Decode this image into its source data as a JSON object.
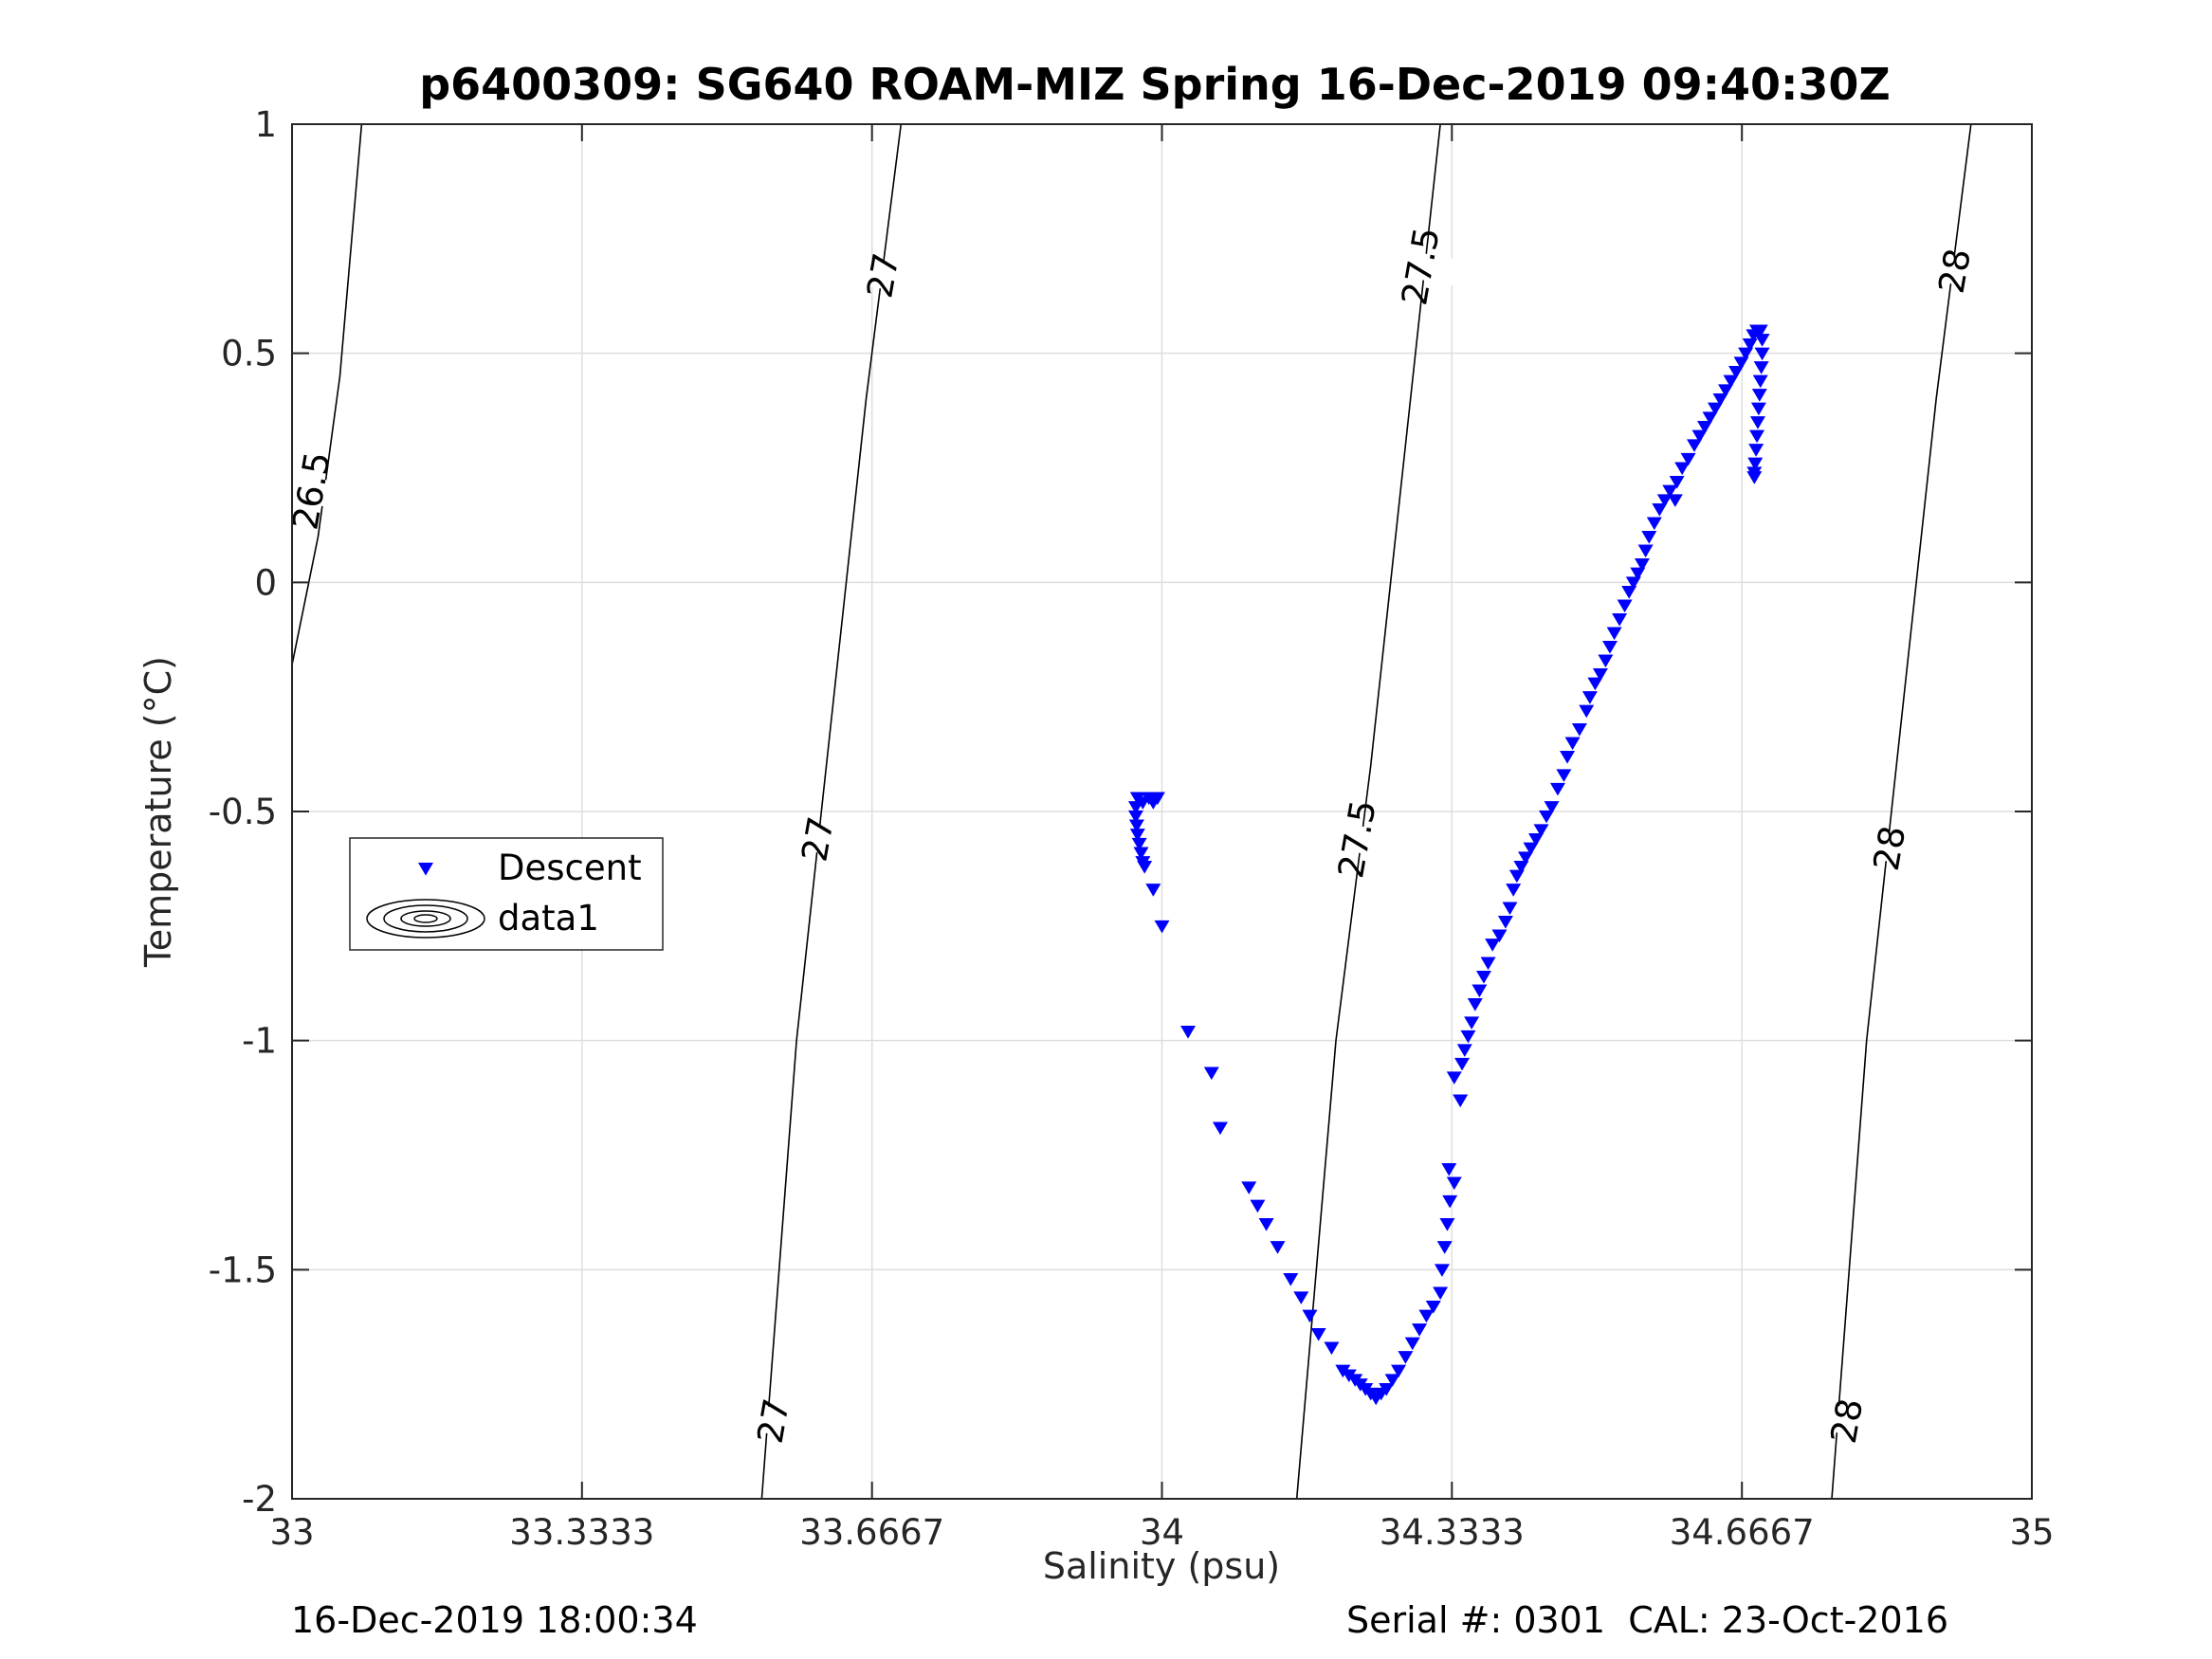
{
  "chart_data": {
    "type": "scatter",
    "title": "p6400309: SG640 ROAM-MIZ Spring 16-Dec-2019 09:40:30Z",
    "xlabel": "Salinity (psu)",
    "ylabel": "Temperature (°C)",
    "xlim": [
      33,
      35
    ],
    "ylim": [
      -2,
      1
    ],
    "x_ticks": [
      33,
      33.3333,
      33.6667,
      34,
      34.3333,
      34.6667,
      35
    ],
    "x_tick_labels": [
      "33",
      "33.3333",
      "33.6667",
      "34",
      "34.3333",
      "34.6667",
      "35"
    ],
    "y_ticks": [
      -2,
      -1.5,
      -1,
      -0.5,
      0,
      0.5,
      1
    ],
    "y_tick_labels": [
      "-2",
      "-1.5",
      "-1",
      "-0.5",
      "0",
      "0.5",
      "1"
    ],
    "grid": true,
    "legend_placement": "middle-left",
    "legend": [
      {
        "label": "Descent",
        "marker": "triangle-down",
        "color": "#0000ff"
      },
      {
        "label": "data1",
        "marker": "contour",
        "color": "#000000"
      }
    ],
    "contours": [
      {
        "level": "26.5",
        "points": [
          [
            33.0,
            -0.18
          ],
          [
            33.03,
            0.1
          ],
          [
            33.055,
            0.45
          ],
          [
            33.08,
            1.0
          ]
        ],
        "labels": [
          {
            "text": "26.5",
            "s": 33.022,
            "t": 0.2
          }
        ]
      },
      {
        "level": "27",
        "points": [
          [
            33.54,
            -2.0
          ],
          [
            33.58,
            -1.0
          ],
          [
            33.62,
            -0.3
          ],
          [
            33.66,
            0.4
          ],
          [
            33.7,
            1.0
          ]
        ],
        "labels": [
          {
            "text": "27",
            "s": 33.553,
            "t": -1.83
          },
          {
            "text": "27",
            "s": 33.604,
            "t": -0.56
          },
          {
            "text": "27",
            "s": 33.679,
            "t": 0.67
          }
        ]
      },
      {
        "level": "27.5",
        "points": [
          [
            34.155,
            -2.0
          ],
          [
            34.2,
            -1.0
          ],
          [
            34.24,
            -0.4
          ],
          [
            34.28,
            0.3
          ],
          [
            34.32,
            1.0
          ]
        ],
        "labels": [
          {
            "text": "27.5",
            "s": 34.224,
            "t": -0.56
          },
          {
            "text": "27.5",
            "s": 34.297,
            "t": 0.69
          }
        ]
      },
      {
        "level": "28",
        "points": [
          [
            34.77,
            -2.0
          ],
          [
            34.81,
            -1.0
          ],
          [
            34.85,
            -0.3
          ],
          [
            34.89,
            0.4
          ],
          [
            34.93,
            1.0
          ]
        ],
        "labels": [
          {
            "text": "28",
            "s": 34.787,
            "t": -1.83
          },
          {
            "text": "28",
            "s": 34.836,
            "t": -0.58
          },
          {
            "text": "28",
            "s": 34.911,
            "t": 0.68
          }
        ]
      }
    ],
    "series": [
      {
        "name": "Descent",
        "marker": "triangle-down",
        "color": "#0000ff",
        "points": [
          [
            33.995,
            -0.47
          ],
          [
            33.99,
            -0.48
          ],
          [
            33.985,
            -0.47
          ],
          [
            33.978,
            -0.48
          ],
          [
            33.972,
            -0.47
          ],
          [
            33.97,
            -0.49
          ],
          [
            33.97,
            -0.51
          ],
          [
            33.971,
            -0.53
          ],
          [
            33.972,
            -0.55
          ],
          [
            33.974,
            -0.57
          ],
          [
            33.976,
            -0.59
          ],
          [
            33.978,
            -0.61
          ],
          [
            33.98,
            -0.62
          ],
          [
            33.99,
            -0.67
          ],
          [
            34.0,
            -0.75
          ],
          [
            34.03,
            -0.98
          ],
          [
            34.057,
            -1.07
          ],
          [
            34.067,
            -1.19
          ],
          [
            34.1,
            -1.32
          ],
          [
            34.11,
            -1.36
          ],
          [
            34.12,
            -1.4
          ],
          [
            34.133,
            -1.45
          ],
          [
            34.148,
            -1.52
          ],
          [
            34.16,
            -1.56
          ],
          [
            34.17,
            -1.6
          ],
          [
            34.18,
            -1.64
          ],
          [
            34.195,
            -1.67
          ],
          [
            34.208,
            -1.72
          ],
          [
            34.215,
            -1.73
          ],
          [
            34.222,
            -1.74
          ],
          [
            34.228,
            -1.75
          ],
          [
            34.234,
            -1.76
          ],
          [
            34.24,
            -1.77
          ],
          [
            34.246,
            -1.78
          ],
          [
            34.252,
            -1.77
          ],
          [
            34.258,
            -1.76
          ],
          [
            34.265,
            -1.74
          ],
          [
            34.272,
            -1.72
          ],
          [
            34.28,
            -1.69
          ],
          [
            34.288,
            -1.66
          ],
          [
            34.296,
            -1.63
          ],
          [
            34.304,
            -1.6
          ],
          [
            34.312,
            -1.58
          ],
          [
            34.32,
            -1.55
          ],
          [
            34.322,
            -1.5
          ],
          [
            34.325,
            -1.45
          ],
          [
            34.328,
            -1.4
          ],
          [
            34.331,
            -1.35
          ],
          [
            34.336,
            -1.31
          ],
          [
            34.33,
            -1.28
          ],
          [
            34.343,
            -1.13
          ],
          [
            34.336,
            -1.08
          ],
          [
            34.345,
            -1.05
          ],
          [
            34.348,
            -1.02
          ],
          [
            34.352,
            -0.99
          ],
          [
            34.356,
            -0.96
          ],
          [
            34.36,
            -0.92
          ],
          [
            34.365,
            -0.89
          ],
          [
            34.37,
            -0.86
          ],
          [
            34.375,
            -0.83
          ],
          [
            34.38,
            -0.79
          ],
          [
            34.388,
            -0.77
          ],
          [
            34.395,
            -0.74
          ],
          [
            34.4,
            -0.71
          ],
          [
            34.404,
            -0.67
          ],
          [
            34.408,
            -0.64
          ],
          [
            34.413,
            -0.62
          ],
          [
            34.418,
            -0.6
          ],
          [
            34.424,
            -0.58
          ],
          [
            34.43,
            -0.56
          ],
          [
            34.436,
            -0.54
          ],
          [
            34.442,
            -0.51
          ],
          [
            34.448,
            -0.49
          ],
          [
            34.455,
            -0.45
          ],
          [
            34.462,
            -0.42
          ],
          [
            34.466,
            -0.38
          ],
          [
            34.472,
            -0.35
          ],
          [
            34.48,
            -0.32
          ],
          [
            34.488,
            -0.28
          ],
          [
            34.492,
            -0.25
          ],
          [
            34.498,
            -0.22
          ],
          [
            34.504,
            -0.2
          ],
          [
            34.51,
            -0.17
          ],
          [
            34.515,
            -0.14
          ],
          [
            34.52,
            -0.11
          ],
          [
            34.526,
            -0.08
          ],
          [
            34.532,
            -0.05
          ],
          [
            34.537,
            -0.02
          ],
          [
            34.542,
            0.0
          ],
          [
            34.547,
            0.02
          ],
          [
            34.552,
            0.04
          ],
          [
            34.556,
            0.07
          ],
          [
            34.56,
            0.1
          ],
          [
            34.566,
            0.13
          ],
          [
            34.572,
            0.16
          ],
          [
            34.578,
            0.18
          ],
          [
            34.584,
            0.2
          ],
          [
            34.59,
            0.18
          ],
          [
            34.592,
            0.22
          ],
          [
            34.598,
            0.25
          ],
          [
            34.605,
            0.27
          ],
          [
            34.612,
            0.3
          ],
          [
            34.618,
            0.32
          ],
          [
            34.624,
            0.34
          ],
          [
            34.63,
            0.36
          ],
          [
            34.636,
            0.38
          ],
          [
            34.642,
            0.4
          ],
          [
            34.648,
            0.42
          ],
          [
            34.654,
            0.44
          ],
          [
            34.66,
            0.46
          ],
          [
            34.666,
            0.48
          ],
          [
            34.671,
            0.5
          ],
          [
            34.676,
            0.52
          ],
          [
            34.68,
            0.54
          ],
          [
            34.684,
            0.55
          ],
          [
            34.688,
            0.55
          ],
          [
            34.69,
            0.53
          ],
          [
            34.69,
            0.5
          ],
          [
            34.689,
            0.47
          ],
          [
            34.688,
            0.44
          ],
          [
            34.687,
            0.41
          ],
          [
            34.686,
            0.38
          ],
          [
            34.685,
            0.35
          ],
          [
            34.684,
            0.32
          ],
          [
            34.683,
            0.29
          ],
          [
            34.682,
            0.26
          ],
          [
            34.681,
            0.24
          ],
          [
            34.681,
            0.23
          ]
        ]
      }
    ]
  },
  "footer": {
    "left": "16-Dec-2019 18:00:34",
    "right": "Serial #: 0301  CAL: 23-Oct-2016"
  }
}
